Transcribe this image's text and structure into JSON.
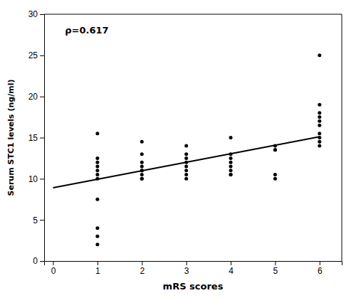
{
  "chart_data": {
    "type": "scatter",
    "series": [
      {
        "type": "scatter",
        "color": "#000000",
        "x": [
          1,
          1,
          1,
          1,
          1,
          1,
          1,
          1,
          1,
          1,
          1,
          2,
          2,
          2,
          2,
          2,
          2,
          2,
          2,
          2,
          3,
          3,
          3,
          3,
          3,
          3,
          3,
          3,
          4,
          4,
          4,
          4,
          4,
          4,
          4,
          4,
          5,
          5,
          5,
          5,
          5,
          6,
          6,
          6,
          6,
          6,
          6,
          6,
          6,
          6,
          6
        ],
        "values": [
          15.5,
          12.5,
          12.0,
          11.5,
          11.0,
          10.5,
          10.0,
          7.5,
          4.0,
          3.0,
          2.0,
          14.5,
          13.0,
          12.0,
          11.5,
          11.0,
          11.0,
          10.5,
          10.0,
          10.0,
          14.0,
          13.0,
          12.5,
          12.0,
          11.5,
          11.0,
          10.5,
          10.0,
          15.0,
          13.0,
          12.5,
          12.0,
          11.5,
          11.0,
          10.5,
          10.5,
          14.0,
          13.5,
          13.5,
          10.5,
          10.0,
          25.0,
          19.0,
          18.0,
          17.5,
          17.0,
          16.5,
          15.5,
          15.0,
          14.5,
          14.0
        ]
      },
      {
        "type": "line",
        "color": "#000000",
        "x": [
          0,
          6
        ],
        "values": [
          8.9,
          15.1
        ]
      }
    ],
    "annotation": "ρ=0.617",
    "xlabel": "mRS scores",
    "ylabel": "Serum STC1 levels (ng/ml)",
    "xlim": [
      -0.2,
      6.5
    ],
    "ylim": [
      0,
      30
    ],
    "xticks": [
      0,
      1,
      2,
      3,
      4,
      5,
      6
    ],
    "yticks": [
      0,
      5,
      10,
      15,
      20,
      25,
      30
    ],
    "grid": false
  }
}
